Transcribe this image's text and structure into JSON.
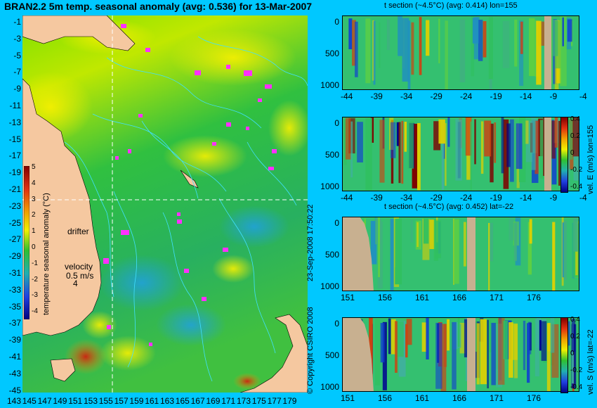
{
  "title": "BRAN2.2 5m temp. seasonal anomaly (avg: 0.536) for 13-Mar-2007",
  "map": {
    "lat_labels": [
      "-1",
      "-3",
      "-5",
      "-7",
      "-9",
      "-11",
      "-13",
      "-15",
      "-17",
      "-19",
      "-21",
      "-23",
      "-25",
      "-27",
      "-29",
      "-31",
      "-33",
      "-35",
      "-37",
      "-39",
      "-41",
      "-43",
      "-45"
    ],
    "lon_labels": [
      "143",
      "145",
      "147",
      "149",
      "151",
      "153",
      "155",
      "157",
      "159",
      "161",
      "163",
      "165",
      "167",
      "169",
      "171",
      "173",
      "175",
      "177",
      "179"
    ],
    "colorbar_label": "temperature seasonal anomaly (°C)",
    "colorbar_ticks": [
      "5",
      "4",
      "3",
      "2",
      "1",
      "0",
      "-1",
      "-2",
      "-3",
      "-4"
    ],
    "drifter_label": "drifter",
    "velocity_label": "velocity",
    "velocity_scale": "0.5 m/s",
    "velocity_subscale": "4",
    "colors": {
      "land": "#f5c8a0",
      "contour": "#40e0ff",
      "drifter": "#ff30ff",
      "ocean": "#30c030"
    }
  },
  "side_text": "23-Sep-2008 17:50:22",
  "copyright": "© Copyright CSIRO 2008",
  "panels": [
    {
      "title": "t section (~4.5°C) (avg: 0.414) lon=155",
      "y_ticks": [
        "0",
        "500",
        "1000"
      ],
      "x_ticks": [
        "-44",
        "-39",
        "-34",
        "-29",
        "-24",
        "-19",
        "-14",
        "-9",
        "-4"
      ],
      "side_label": ""
    },
    {
      "title": "",
      "y_ticks": [
        "0",
        "500",
        "1000"
      ],
      "x_ticks": [
        "-44",
        "-39",
        "-34",
        "-29",
        "-24",
        "-19",
        "-14",
        "-9",
        "-4"
      ],
      "side_label": "vel. E (m/s) lon=155",
      "colorbar_ticks": [
        "0.4",
        "0.2",
        "0",
        "-0.2",
        "-0.4"
      ]
    },
    {
      "title": "t section (~4.5°C) (avg: 0.452) lat=-22",
      "y_ticks": [
        "0",
        "500",
        "1000"
      ],
      "x_ticks": [
        "151",
        "156",
        "161",
        "166",
        "171",
        "176"
      ],
      "side_label": ""
    },
    {
      "title": "",
      "y_ticks": [
        "0",
        "500",
        "1000"
      ],
      "x_ticks": [
        "151",
        "156",
        "161",
        "166",
        "171",
        "176"
      ],
      "side_label": "vel. S (m/s) lat=-22",
      "colorbar_ticks": [
        "0.4",
        "0.2",
        "0",
        "-0.2",
        "-0.4"
      ]
    }
  ]
}
